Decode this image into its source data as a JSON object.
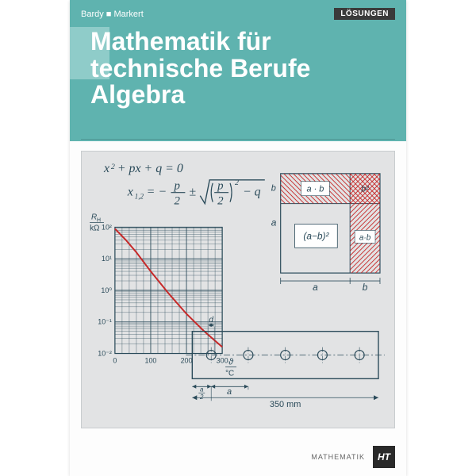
{
  "header": {
    "band_color": "#5fb3af",
    "accent_color": "#8fccc9",
    "authors": "Bardy ■ Markert",
    "tag": "LÖSUNGEN",
    "tag_bg": "#3a3a3a",
    "title_line1": "Mathematik für",
    "title_line2": "technische Berufe",
    "title_line3": "Algebra",
    "title_color": "#ffffff"
  },
  "footer": {
    "category": "MATHEMATIK",
    "logo": "HT",
    "logo_bg": "#2a2a2a"
  },
  "diagram": {
    "bg": "#e2e3e4",
    "stroke": "#2b4b5a",
    "curve_color": "#c62828",
    "hatch_color": "#c62828",
    "formula": {
      "eq1": "x² + px + q = 0",
      "eq2_lhs": "x₁,₂ =",
      "eq2_rhs": "− p/2 ± √((p/2)² − q)",
      "color": "#2b4b5a",
      "fontsize": 14
    },
    "graph": {
      "type": "semilog-line",
      "x_axis_label": "ϑ/°C",
      "y_axis_label": "R_H / kΩ",
      "xlim": [
        0,
        300
      ],
      "x_ticks": [
        0,
        100,
        200,
        300
      ],
      "y_ticks_log": [
        0.01,
        0.1,
        1,
        10,
        100
      ],
      "y_tick_labels": [
        "10⁻²",
        "10⁻¹",
        "10⁰",
        "10¹",
        "10²"
      ],
      "curve_points_xy": [
        [
          0,
          90
        ],
        [
          30,
          40
        ],
        [
          60,
          16
        ],
        [
          100,
          4
        ],
        [
          150,
          0.8
        ],
        [
          200,
          0.18
        ],
        [
          250,
          0.05
        ],
        [
          300,
          0.016
        ]
      ],
      "grid_color": "#2b4b5a"
    },
    "square_diagram": {
      "outer_label_a": "a",
      "outer_label_b": "b",
      "center_label": "(a−b)²",
      "rect_label_ab": "a · b",
      "rect_label_ab2": "a · b",
      "corner_label": "b²",
      "hatch_color": "#c62828"
    },
    "plate": {
      "hole_count": 5,
      "width_label": "350 mm",
      "pitch_label": "a",
      "margin_label": "a/2",
      "dia_label": "d"
    }
  }
}
